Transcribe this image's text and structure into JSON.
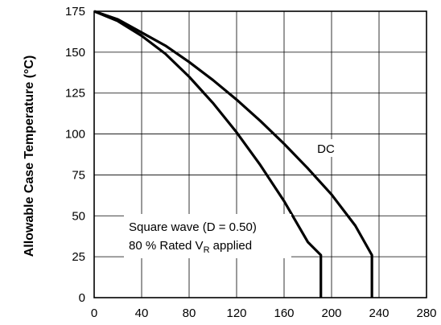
{
  "chart_data": {
    "type": "line",
    "title": "",
    "xlabel": "",
    "ylabel": "Allowable Case Temperature (°C)",
    "xlim": [
      0,
      280
    ],
    "ylim": [
      0,
      175
    ],
    "x_ticks": [
      0,
      40,
      80,
      120,
      160,
      200,
      240,
      280
    ],
    "y_ticks": [
      0,
      25,
      50,
      75,
      100,
      125,
      150,
      175
    ],
    "grid": true,
    "series": [
      {
        "label": "DC",
        "points": [
          [
            0,
            175
          ],
          [
            20,
            170
          ],
          [
            40,
            162
          ],
          [
            60,
            154
          ],
          [
            80,
            144
          ],
          [
            100,
            133
          ],
          [
            120,
            121
          ],
          [
            140,
            108
          ],
          [
            160,
            94
          ],
          [
            180,
            79
          ],
          [
            200,
            63
          ],
          [
            220,
            44
          ],
          [
            234,
            26
          ],
          [
            234,
            0
          ]
        ]
      },
      {
        "label_line1": "Square wave (D = 0.50)",
        "label_line2_prefix": "80 % Rated V",
        "label_line2_sub": "R",
        "label_line2_suffix": " applied",
        "points": [
          [
            0,
            175
          ],
          [
            20,
            169
          ],
          [
            40,
            160
          ],
          [
            60,
            149
          ],
          [
            80,
            135
          ],
          [
            100,
            119
          ],
          [
            120,
            101
          ],
          [
            140,
            81
          ],
          [
            160,
            59
          ],
          [
            180,
            34
          ],
          [
            191,
            26
          ],
          [
            191,
            0
          ]
        ]
      }
    ]
  }
}
